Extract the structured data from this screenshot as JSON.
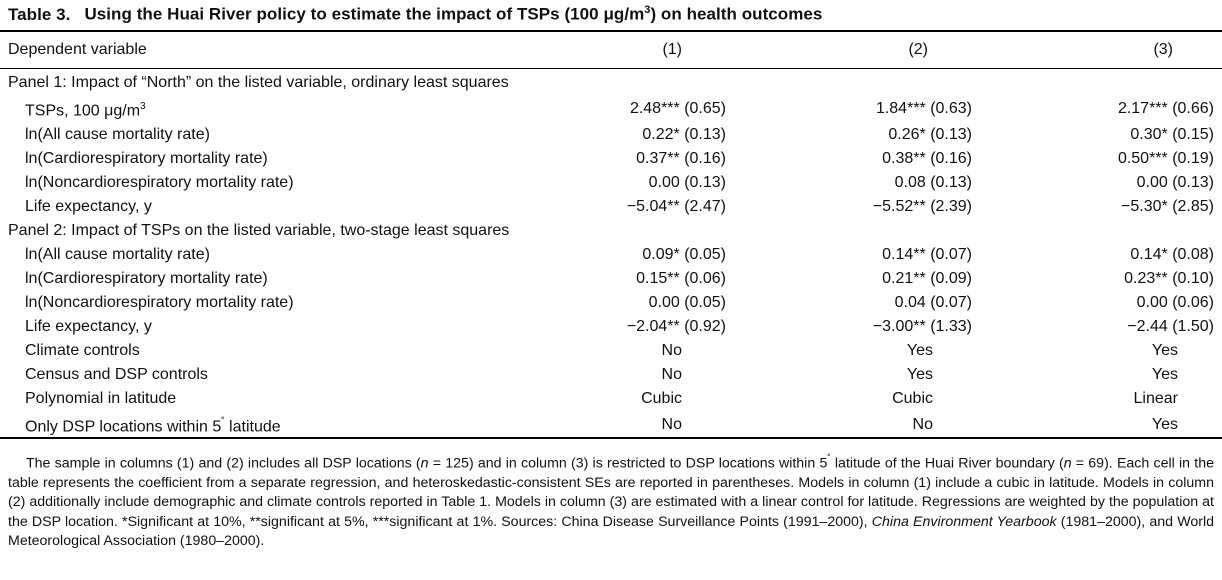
{
  "table": {
    "number": "Table 3.",
    "title": "Using the Huai River policy to estimate the impact of TSPs (100 μg/m",
    "title_sup": "3",
    "title_end": ") on health outcomes",
    "header": {
      "label": "Dependent variable",
      "columns": [
        "(1)",
        "(2)",
        "(3)"
      ]
    },
    "panel1": {
      "heading": "Panel 1: Impact of “North” on the listed variable, ordinary least squares",
      "rows": [
        {
          "label": "TSPs, 100 μg/m",
          "sup": "3",
          "v1": "2.48*** (0.65)",
          "v2": "1.84*** (0.63)",
          "v3": "2.17*** (0.66)"
        },
        {
          "label": "ln(All cause mortality rate)",
          "v1": "0.22* (0.13)",
          "v2": "0.26* (0.13)",
          "v3": "0.30* (0.15)"
        },
        {
          "label": "ln(Cardiorespiratory mortality rate)",
          "v1": "0.37** (0.16)",
          "v2": "0.38** (0.16)",
          "v3": "0.50*** (0.19)"
        },
        {
          "label": "ln(Noncardiorespiratory mortality rate)",
          "v1": "0.00 (0.13)",
          "v2": "0.08 (0.13)",
          "v3": "0.00 (0.13)"
        },
        {
          "label": "Life expectancy, y",
          "v1": "−5.04** (2.47)",
          "v2": "−5.52** (2.39)",
          "v3": "−5.30* (2.85)"
        }
      ]
    },
    "panel2": {
      "heading": "Panel 2: Impact of TSPs on the listed variable, two-stage least squares",
      "rows": [
        {
          "label": "ln(All cause mortality rate)",
          "v1": "0.09* (0.05)",
          "v2": "0.14** (0.07)",
          "v3": "0.14* (0.08)"
        },
        {
          "label": "ln(Cardiorespiratory mortality rate)",
          "v1": "0.15** (0.06)",
          "v2": "0.21** (0.09)",
          "v3": "0.23** (0.10)"
        },
        {
          "label": "ln(Noncardiorespiratory mortality rate)",
          "v1": "0.00 (0.05)",
          "v2": "0.04 (0.07)",
          "v3": "0.00 (0.06)"
        },
        {
          "label": "Life expectancy, y",
          "v1": "−2.04** (0.92)",
          "v2": "−3.00** (1.33)",
          "v3": "−2.44 (1.50)"
        }
      ]
    },
    "controls": [
      {
        "label": "Climate controls",
        "v1": "No",
        "v2": "Yes",
        "v3": "Yes"
      },
      {
        "label": "Census and DSP controls",
        "v1": "No",
        "v2": "Yes",
        "v3": "Yes"
      },
      {
        "label": "Polynomial in latitude",
        "v1": "Cubic",
        "v2": "Cubic",
        "v3": "Linear"
      },
      {
        "label": "Only DSP locations within 5",
        "sup": "˚",
        "label_end": " latitude",
        "v1": "No",
        "v2": "No",
        "v3": "Yes"
      }
    ]
  },
  "notes": {
    "part1": "The sample in columns (1) and (2) includes all DSP locations (",
    "n1": "n",
    "part2": " = 125) and in column (3) is restricted to DSP locations within 5",
    "deg": "˚",
    "part3": " latitude of the Huai River boundary (",
    "n2": "n",
    "part4": " = 69). Each cell in the table represents the coefficient from a separate regression, and heteroskedastic-consistent SEs are reported in parentheses. Models in column (1) include a cubic in latitude. Models in column (2) additionally include demographic and climate controls reported in Table 1. Models in column (3) are estimated with a linear control for latitude. Regressions are weighted by the population at the DSP location. *Significant at 10%, **significant at 5%, ***significant at 1%. Sources: China Disease Surveillance Points (1991–2000), ",
    "italic": "China Environment Yearbook",
    "part5": " (1981–2000), and World Meteorological Association (1980–2000)."
  }
}
